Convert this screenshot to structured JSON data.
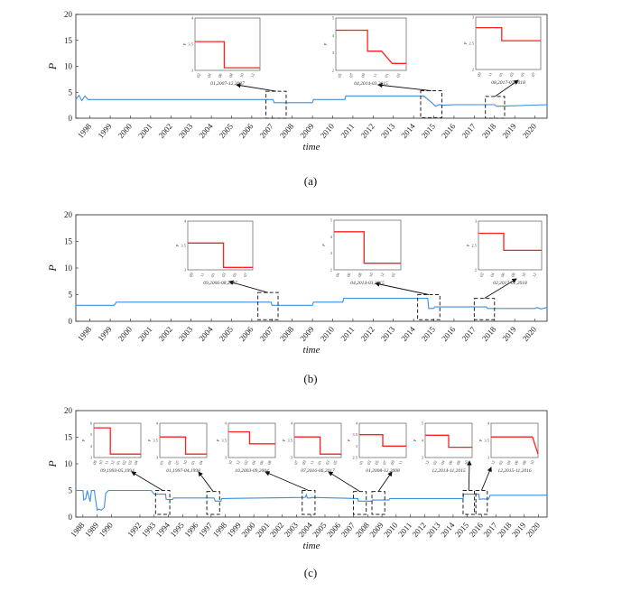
{
  "chart_data": [
    {
      "type": "line",
      "caption": "(a)",
      "xlabel": "time",
      "ylabel": "P",
      "ylim": [
        0,
        20
      ],
      "yticks": [
        "0",
        "5",
        "10",
        "15",
        "20"
      ],
      "xlim": [
        1997.3,
        2020.6
      ],
      "xticks": [
        "1998",
        "1999",
        "2000",
        "2001",
        "2002",
        "2003",
        "2004",
        "2005",
        "2006",
        "2007",
        "2008",
        "2009",
        "2010",
        "2011",
        "2012",
        "2013",
        "2014",
        "2015",
        "2016",
        "2017",
        "2018",
        "2019",
        "2020"
      ],
      "series": [
        {
          "name": "P",
          "color": "#3d8fe0",
          "x": [
            1997.3,
            1997.45,
            1997.6,
            1997.75,
            1997.9,
            1998.1,
            2007.05,
            2007.1,
            2009.0,
            2009.05,
            2010.6,
            2010.65,
            2014.5,
            2014.9,
            2015.1,
            2015.25,
            2015.5,
            2016.0,
            2018.0,
            2018.1,
            2020.6
          ],
          "y": [
            3.6,
            4.4,
            3.4,
            4.3,
            3.6,
            3.6,
            3.6,
            3.0,
            3.0,
            3.6,
            3.6,
            4.3,
            4.3,
            3.0,
            2.3,
            2.6,
            2.5,
            2.6,
            2.6,
            2.3,
            2.6
          ]
        }
      ],
      "highlights": [
        {
          "x0": 2006.7,
          "x1": 2007.7,
          "y0": 0,
          "y1": 5.2
        },
        {
          "x0": 2014.35,
          "x1": 2015.4,
          "y0": 0.1,
          "y1": 5.3
        },
        {
          "x0": 2017.55,
          "x1": 2018.5,
          "y0": 0,
          "y1": 4.2
        }
      ],
      "insets": [
        {
          "label": "01,2007-12,2007",
          "ylim": [
            3,
            4
          ],
          "yticks": [
            "3",
            "3.5",
            "4"
          ],
          "xticks": [
            "02",
            "04",
            "06",
            "08",
            "10",
            "12"
          ],
          "x": [
            0,
            0.45,
            0.45,
            1
          ],
          "y": [
            3.55,
            3.55,
            3.05,
            3.05
          ]
        },
        {
          "label": "04,2014-03,2015",
          "ylim": [
            2,
            5
          ],
          "yticks": [
            "2",
            "3",
            "4",
            "5"
          ],
          "xticks": [
            "05",
            "07",
            "09",
            "11",
            "01",
            "03"
          ],
          "x": [
            0,
            0.45,
            0.45,
            0.65,
            0.8,
            1
          ],
          "y": [
            4.3,
            4.3,
            3.1,
            3.1,
            2.4,
            2.4
          ]
        },
        {
          "label": "08,2017-07,2018",
          "ylim": [
            2,
            3
          ],
          "yticks": [
            "2",
            "2.5",
            "3"
          ],
          "xticks": [
            "09",
            "11",
            "01",
            "03",
            "05",
            "07"
          ],
          "x": [
            0,
            0.4,
            0.4,
            1
          ],
          "y": [
            2.8,
            2.8,
            2.55,
            2.55
          ]
        }
      ]
    },
    {
      "type": "line",
      "caption": "(b)",
      "xlabel": "time",
      "ylabel": "P",
      "ylim": [
        0,
        20
      ],
      "yticks": [
        "0",
        "5",
        "10",
        "15",
        "20"
      ],
      "xlim": [
        1997.3,
        2020.6
      ],
      "xticks": [
        "1998",
        "1999",
        "2000",
        "2001",
        "2002",
        "2003",
        "2004",
        "2005",
        "2006",
        "2007",
        "2008",
        "2009",
        "2010",
        "2011",
        "2012",
        "2013",
        "2014",
        "2015",
        "2016",
        "2017",
        "2018",
        "2019",
        "2020"
      ],
      "series": [
        {
          "name": "P",
          "color": "#3d8fe0",
          "x": [
            1997.3,
            1999.2,
            1999.3,
            2006.95,
            2007.0,
            2009.0,
            2009.05,
            2010.5,
            2010.55,
            2014.7,
            2014.75,
            2015.0,
            2015.05,
            2017.6,
            2017.65,
            2020.0,
            2020.1,
            2020.3,
            2020.6
          ],
          "y": [
            3.0,
            3.0,
            3.6,
            3.6,
            3.0,
            3.0,
            3.6,
            3.6,
            4.3,
            4.3,
            2.4,
            2.4,
            2.7,
            2.7,
            2.4,
            2.4,
            2.6,
            2.3,
            2.6
          ]
        }
      ],
      "highlights": [
        {
          "x0": 2006.3,
          "x1": 2007.3,
          "y0": 0.3,
          "y1": 5.4
        },
        {
          "x0": 2014.2,
          "x1": 2015.3,
          "y0": 0.3,
          "y1": 5.0
        },
        {
          "x0": 2017.0,
          "x1": 2018.0,
          "y0": 0.3,
          "y1": 4.3
        }
      ],
      "insets": [
        {
          "label": "09,2006-08,2007",
          "ylim": [
            3,
            4
          ],
          "yticks": [
            "3",
            "3.5",
            "4"
          ],
          "xticks": [
            "09",
            "11",
            "01",
            "03",
            "05",
            "07"
          ],
          "x": [
            0,
            0.55,
            0.55,
            1
          ],
          "y": [
            3.55,
            3.55,
            3.05,
            3.05
          ]
        },
        {
          "label": "04,2014-03,2015",
          "ylim": [
            2,
            5
          ],
          "yticks": [
            "2",
            "3",
            "4",
            "5"
          ],
          "xticks": [
            "04",
            "06",
            "08",
            "10",
            "12",
            "02"
          ],
          "x": [
            0,
            0.45,
            0.45,
            1
          ],
          "y": [
            4.3,
            4.3,
            2.4,
            2.4
          ]
        },
        {
          "label": "02,2017-01,2018",
          "ylim": [
            2,
            3
          ],
          "yticks": [
            "2",
            "2.5",
            "3"
          ],
          "xticks": [
            "02",
            "04",
            "06",
            "08",
            "10",
            "12"
          ],
          "x": [
            0,
            0.4,
            0.4,
            1
          ],
          "y": [
            2.75,
            2.75,
            2.4,
            2.4
          ]
        }
      ]
    },
    {
      "type": "line",
      "caption": "(c)",
      "xlabel": "time",
      "ylabel": "P",
      "ylim": [
        0,
        20
      ],
      "yticks": [
        "0",
        "5",
        "10",
        "15",
        "20"
      ],
      "xlim": [
        1987.5,
        2020.6
      ],
      "xticks": [
        "1988",
        "1989",
        "1990",
        "1992",
        "1993",
        "1994",
        "1995",
        "1996",
        "1997",
        "1998",
        "1999",
        "2000",
        "2001",
        "2002",
        "2003",
        "2004",
        "2005",
        "2006",
        "2007",
        "2008",
        "2009",
        "2010",
        "2011",
        "2012",
        "2013",
        "2014",
        "2015",
        "2016",
        "2017",
        "2018",
        "2019",
        "2020"
      ],
      "series": [
        {
          "name": "P",
          "color": "#3d8fe0",
          "x": [
            1987.5,
            1988.0,
            1988.05,
            1988.2,
            1988.3,
            1988.5,
            1988.6,
            1988.8,
            1988.9,
            1989.0,
            1989.1,
            1989.3,
            1989.5,
            1989.6,
            1989.8,
            1989.9,
            1990.3,
            1992.8,
            1993.0,
            1993.8,
            1993.85,
            1994.3,
            1994.35,
            1997.2,
            1997.3,
            1997.7,
            1997.75,
            1998.0,
            2003.6,
            2003.7,
            2003.75,
            2004.0,
            2004.05,
            2007.3,
            2007.35,
            2008.3,
            2008.35,
            2009.5,
            2009.55,
            2014.7,
            2014.75,
            2015.8,
            2015.85,
            2016.0,
            2016.5,
            2016.6,
            2020.6
          ],
          "y": [
            5.0,
            5.0,
            3.2,
            3.5,
            5.0,
            2.9,
            5.0,
            5.0,
            3.0,
            1.3,
            1.5,
            1.3,
            1.8,
            4.5,
            5.0,
            5.0,
            5.0,
            5.0,
            4.3,
            4.3,
            3.3,
            3.3,
            3.6,
            3.6,
            3.0,
            3.0,
            3.5,
            3.5,
            3.7,
            4.2,
            3.6,
            3.6,
            3.7,
            3.5,
            3.0,
            3.0,
            3.2,
            3.2,
            3.5,
            3.5,
            4.3,
            4.3,
            3.3,
            3.4,
            3.4,
            4.1,
            4.1
          ]
        }
      ],
      "highlights": [
        {
          "x0": 1993.1,
          "x1": 1994.1,
          "y0": 0.5,
          "y1": 5.0
        },
        {
          "x0": 1996.7,
          "x1": 1997.6,
          "y0": 0.5,
          "y1": 4.8
        },
        {
          "x0": 2003.4,
          "x1": 2004.3,
          "y0": 0.5,
          "y1": 5.0
        },
        {
          "x0": 2007.0,
          "x1": 2007.9,
          "y0": 0.5,
          "y1": 4.8
        },
        {
          "x0": 2008.3,
          "x1": 2009.2,
          "y0": 0.5,
          "y1": 4.8
        },
        {
          "x0": 2014.7,
          "x1": 2015.5,
          "y0": 0.5,
          "y1": 5.0
        },
        {
          "x0": 2015.6,
          "x1": 2016.4,
          "y0": 0.5,
          "y1": 5.0
        }
      ],
      "insets": [
        {
          "label": "09,1993-05,1994",
          "ylim": [
            3,
            6
          ],
          "yticks": [
            "3",
            "4",
            "5",
            "6"
          ],
          "xticks": [
            "09",
            "10",
            "11",
            "12",
            "01",
            "02",
            "03",
            "04"
          ],
          "x": [
            0,
            0.35,
            0.35,
            1
          ],
          "y": [
            5.6,
            5.6,
            3.3,
            3.3
          ]
        },
        {
          "label": "01,1997-04,1998",
          "ylim": [
            3,
            4
          ],
          "yticks": [
            "3",
            "3.5",
            "4"
          ],
          "xticks": [
            "01",
            "04",
            "07",
            "10",
            "01",
            "04"
          ],
          "x": [
            0,
            0.55,
            0.55,
            1
          ],
          "y": [
            3.6,
            3.6,
            3.1,
            3.1
          ]
        },
        {
          "label": "10,2003-09,2004",
          "ylim": [
            3,
            4
          ],
          "yticks": [
            "3",
            "3.5",
            "4"
          ],
          "xticks": [
            "10",
            "12",
            "02",
            "04",
            "06",
            "08"
          ],
          "x": [
            0,
            0.45,
            0.45,
            1
          ],
          "y": [
            3.75,
            3.75,
            3.4,
            3.4
          ]
        },
        {
          "label": "07,2016-06,2017",
          "ylim": [
            3,
            4
          ],
          "yticks": [
            "3",
            "3.5",
            "4"
          ],
          "xticks": [
            "07",
            "09",
            "11",
            "01",
            "03",
            "05"
          ],
          "x": [
            0,
            0.55,
            0.55,
            1
          ],
          "y": [
            3.6,
            3.6,
            3.1,
            3.1
          ]
        },
        {
          "label": "01,2008-12,2008",
          "ylim": [
            2.5,
            4
          ],
          "yticks": [
            "2.5",
            "3",
            "3.5",
            "4"
          ],
          "xticks": [
            "01",
            "03",
            "05",
            "07",
            "09",
            "11"
          ],
          "x": [
            0,
            0.5,
            0.5,
            1
          ],
          "y": [
            3.5,
            3.5,
            3.0,
            3.0
          ]
        },
        {
          "label": "12,2014-11,2015",
          "ylim": [
            3,
            5
          ],
          "yticks": [
            "3",
            "4",
            "5"
          ],
          "xticks": [
            "12",
            "02",
            "04",
            "06",
            "08",
            "10"
          ],
          "x": [
            0,
            0.5,
            0.5,
            1
          ],
          "y": [
            4.3,
            4.3,
            3.6,
            3.6
          ]
        },
        {
          "label": "12,2015-11,2016",
          "ylim": [
            3,
            4
          ],
          "yticks": [
            "3",
            "3.5",
            "4"
          ],
          "xticks": [
            "12",
            "02",
            "04",
            "06",
            "08",
            "10"
          ],
          "x": [
            0,
            0.88,
            0.88,
            1
          ],
          "y": [
            3.6,
            3.6,
            3.6,
            3.1
          ]
        }
      ]
    }
  ]
}
